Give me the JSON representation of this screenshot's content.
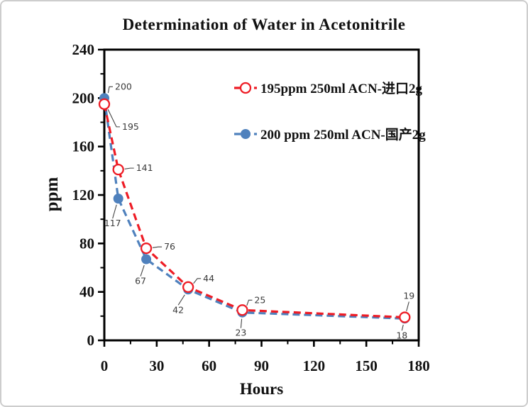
{
  "window": {
    "background": "#ffffff",
    "border_color": "#cdcdcd"
  },
  "chart_data": {
    "type": "line",
    "title": "Determination of Water in Acetonitrile",
    "xlabel": "Hours",
    "ylabel": "ppm",
    "xlim": [
      0,
      180
    ],
    "ylim": [
      0,
      240
    ],
    "x_major_ticks": [
      0,
      30,
      60,
      90,
      120,
      150,
      180
    ],
    "x_minor_ticks": [
      15,
      45,
      75,
      105,
      135,
      165
    ],
    "y_major_ticks": [
      0,
      40,
      80,
      120,
      160,
      200,
      240
    ],
    "y_minor_ticks": [
      20,
      60,
      100,
      140,
      180,
      220
    ],
    "grid": false,
    "legend_position": "inside-top-right",
    "axis_color": "#000000",
    "point_label_color": "#3a3a3a",
    "leader_line_color": "#444444",
    "series": [
      {
        "name": "200 ppm 250ml ACN-国产2g",
        "color": "#4f81bd",
        "line_style": "dashed",
        "marker": "filled-circle",
        "x": [
          0,
          8,
          24,
          48,
          79,
          172
        ],
        "y": [
          200,
          117,
          67,
          42,
          23,
          18
        ],
        "point_labels": [
          {
            "text": "200",
            "dx": 12,
            "dy": -16,
            "anchor": "start"
          },
          {
            "text": "117",
            "dx": -8,
            "dy": 28,
            "anchor": "middle"
          },
          {
            "text": "67",
            "dx": -8,
            "dy": 24,
            "anchor": "middle"
          },
          {
            "text": "42",
            "dx": -14,
            "dy": 22,
            "anchor": "middle"
          },
          {
            "text": "23",
            "dx": -2,
            "dy": 22,
            "anchor": "middle"
          },
          {
            "text": "18",
            "dx": -4,
            "dy": 17,
            "anchor": "middle"
          }
        ]
      },
      {
        "name": "195ppm  250ml ACN-进口2g",
        "color": "#ee1c25",
        "line_style": "dashed",
        "marker": "open-circle",
        "x": [
          0,
          8,
          24,
          48,
          79,
          172
        ],
        "y": [
          195,
          141,
          76,
          44,
          25,
          19
        ],
        "point_labels": [
          {
            "text": "195",
            "dx": 22,
            "dy": 32,
            "anchor": "start"
          },
          {
            "text": "141",
            "dx": 22,
            "dy": -2,
            "anchor": "start"
          },
          {
            "text": "76",
            "dx": 22,
            "dy": -2,
            "anchor": "start"
          },
          {
            "text": "44",
            "dx": 18,
            "dy": -12,
            "anchor": "start"
          },
          {
            "text": "25",
            "dx": 14,
            "dy": -14,
            "anchor": "start"
          },
          {
            "text": "19",
            "dx": 6,
            "dy": -22,
            "anchor": "middle"
          }
        ]
      }
    ],
    "legend_order": [
      1,
      0
    ]
  }
}
